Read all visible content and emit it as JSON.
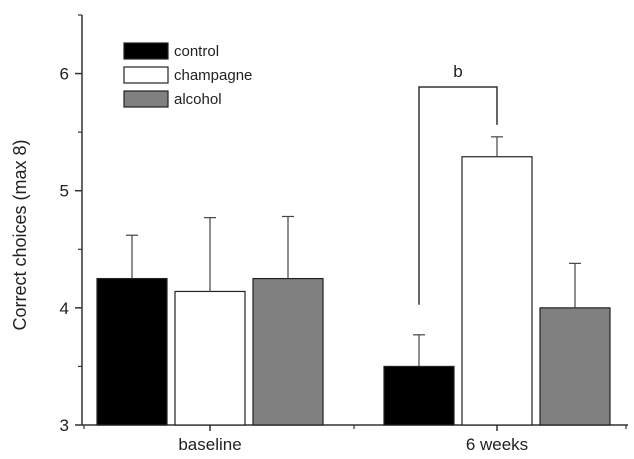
{
  "chart_data": {
    "type": "bar",
    "title": "",
    "xlabel": "",
    "ylabel": "Correct choices (max 8)",
    "ylim": [
      3,
      6.5
    ],
    "yticks": [
      3,
      4,
      5,
      6
    ],
    "ytick_labels": [
      "3",
      "4",
      "5",
      "6"
    ],
    "categories": [
      "baseline",
      "6 weeks"
    ],
    "grid": false,
    "legend_position": "top-left",
    "series": [
      {
        "name": "control",
        "color": "#000000",
        "values": [
          4.25,
          3.5
        ],
        "errors": [
          0.37,
          0.27
        ]
      },
      {
        "name": "champagne",
        "color": "#ffffff",
        "values": [
          4.14,
          5.29
        ],
        "errors": [
          0.63,
          0.17
        ]
      },
      {
        "name": "alcohol",
        "color": "#808080",
        "values": [
          4.25,
          4.0
        ],
        "errors": [
          0.53,
          0.38
        ]
      }
    ],
    "annotations": [
      {
        "label": "b",
        "category": "6 weeks",
        "between": [
          "control",
          "champagne"
        ]
      }
    ]
  }
}
